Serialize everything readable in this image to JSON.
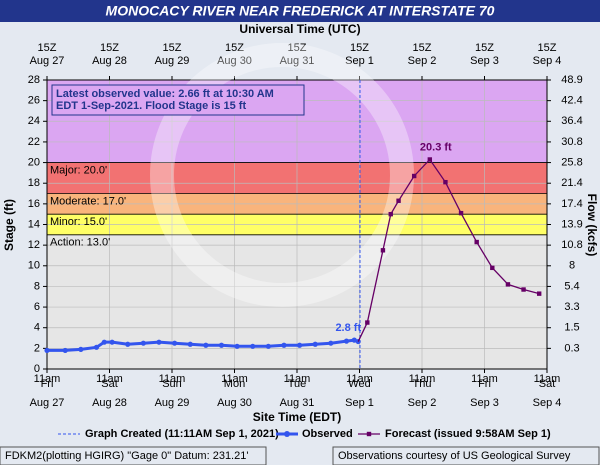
{
  "chart_data": {
    "type": "hydrograph",
    "title": "MONOCACY RIVER NEAR FREDERICK AT INTERSTATE 70",
    "x2_title": "Universal Time (UTC)",
    "x_title": "Site Time (EDT)",
    "y_title": "Stage (ft)",
    "y2_title": "Flow (kcfs)",
    "xlim": [
      "2021-08-27T11:00",
      "2021-09-04T11:00"
    ],
    "xticks": [
      {
        "value": "2021-08-27T11:00",
        "label": "11am"
      },
      {
        "value": "2021-08-28T11:00",
        "label": "11am"
      },
      {
        "value": "2021-08-29T11:00",
        "label": "11am"
      },
      {
        "value": "2021-08-30T11:00",
        "label": "11am"
      },
      {
        "value": "2021-08-31T11:00",
        "label": "11am"
      },
      {
        "value": "2021-09-01T11:00",
        "label": "11am"
      },
      {
        "value": "2021-09-02T11:00",
        "label": "11am"
      },
      {
        "value": "2021-09-03T11:00",
        "label": "11am"
      },
      {
        "value": "2021-09-04T11:00",
        "label": "11am"
      }
    ],
    "xtick_days": [
      "Fri",
      "Sat",
      "Sun",
      "Mon",
      "Tue",
      "Wed",
      "Thu",
      "Fri",
      "Sat"
    ],
    "xtick_dates": [
      "Aug 27",
      "Aug 28",
      "Aug 29",
      "Aug 30",
      "Aug 31",
      "Sep 1",
      "Sep 2",
      "Sep 3",
      "Sep 4"
    ],
    "x2tick_labels": [
      "15Z",
      "15Z",
      "15Z",
      "15Z",
      "15Z",
      "15Z",
      "15Z",
      "15Z",
      "15Z"
    ],
    "ylim": [
      0,
      28
    ],
    "yticks": [
      0,
      2,
      4,
      6,
      8,
      10,
      12,
      14,
      16,
      18,
      20,
      22,
      24,
      26,
      28
    ],
    "y2ticks": [
      48.9,
      42.4,
      36.4,
      30.8,
      25.8,
      21.4,
      17.4,
      13.9,
      10.8,
      8.0,
      5.4,
      3.3,
      1.5,
      0.3
    ],
    "grid": true,
    "above_major_color": "#dba6f2",
    "flood_categories": [
      {
        "label": "Major: 20.0'",
        "value": 20,
        "color": "#f27272"
      },
      {
        "label": "Moderate: 17.0'",
        "value": 17,
        "color": "#f9b47c"
      },
      {
        "label": "Minor: 15.0'",
        "value": 15,
        "color": "#ffff66"
      },
      {
        "label": "Action: 13.0'",
        "value": 13,
        "color": "#e6e6e6"
      }
    ],
    "info": [
      "Latest observed value: 2.66 ft at 10:30 AM",
      "EDT 1-Sep-2021.  Flood Stage is 15 ft"
    ],
    "created": "2021-09-01T11:11",
    "series": [
      {
        "name": "Observed",
        "color": "#3355ee",
        "x": [
          "2021-08-27T11:00",
          "2021-08-27T18:00",
          "2021-08-28T00:00",
          "2021-08-28T06:00",
          "2021-08-28T09:00",
          "2021-08-28T12:00",
          "2021-08-28T18:00",
          "2021-08-29T00:00",
          "2021-08-29T06:00",
          "2021-08-29T12:00",
          "2021-08-29T18:00",
          "2021-08-30T00:00",
          "2021-08-30T06:00",
          "2021-08-30T12:00",
          "2021-08-30T18:00",
          "2021-08-31T00:00",
          "2021-08-31T06:00",
          "2021-08-31T12:00",
          "2021-08-31T18:00",
          "2021-09-01T00:00",
          "2021-09-01T06:00",
          "2021-09-01T09:00",
          "2021-09-01T10:30"
        ],
        "values": [
          1.8,
          1.8,
          1.9,
          2.1,
          2.6,
          2.6,
          2.4,
          2.5,
          2.6,
          2.5,
          2.4,
          2.3,
          2.3,
          2.2,
          2.2,
          2.2,
          2.3,
          2.3,
          2.4,
          2.5,
          2.7,
          2.8,
          2.66
        ],
        "annotation": "2.8 ft"
      },
      {
        "name": "Forecast (issued 9:58AM Sep 1)",
        "color": "#660066",
        "x": [
          "2021-09-01T14:00",
          "2021-09-01T20:00",
          "2021-09-01T23:00",
          "2021-09-02T02:00",
          "2021-09-02T08:00",
          "2021-09-02T14:00",
          "2021-09-02T20:00",
          "2021-09-03T02:00",
          "2021-09-03T08:00",
          "2021-09-03T14:00",
          "2021-09-03T20:00",
          "2021-09-04T02:00",
          "2021-09-04T08:00"
        ],
        "values": [
          4.5,
          11.5,
          15.0,
          16.3,
          18.7,
          20.3,
          18.1,
          15.1,
          12.3,
          9.8,
          8.2,
          7.7,
          7.3
        ],
        "annotation": "20.3 ft"
      }
    ],
    "legend_created": "Graph Created (11:11AM Sep 1, 2021)",
    "footer_left": "FDKM2(plotting HGIRG) \"Gage 0\" Datum: 231.21'",
    "footer_right": "Observations courtesy of US Geological Survey"
  }
}
